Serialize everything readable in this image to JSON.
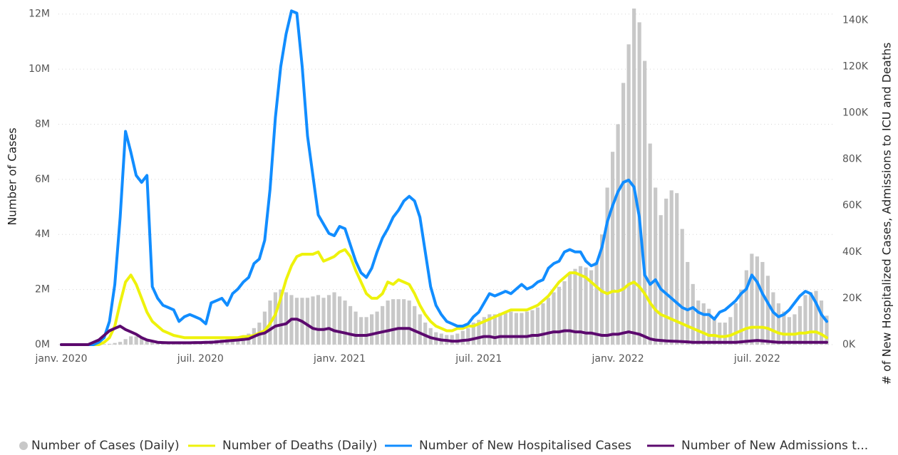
{
  "chart_data": {
    "type": "combo",
    "y_label": "Number of Cases",
    "y2_label": "# of New Hospitalized Cases, Admissions to ICU and Deaths",
    "categories": [
      "janv. 2020",
      null,
      null,
      null,
      null,
      null,
      null,
      null,
      null,
      null,
      null,
      null,
      null,
      null,
      null,
      null,
      null,
      null,
      null,
      null,
      null,
      null,
      null,
      null,
      null,
      null,
      "juil. 2020",
      null,
      null,
      null,
      null,
      null,
      null,
      null,
      null,
      null,
      null,
      null,
      null,
      null,
      null,
      null,
      null,
      null,
      null,
      null,
      null,
      null,
      null,
      null,
      null,
      null,
      "janv. 2021",
      null,
      null,
      null,
      null,
      null,
      null,
      null,
      null,
      null,
      null,
      null,
      null,
      null,
      null,
      null,
      null,
      null,
      null,
      null,
      null,
      null,
      null,
      null,
      null,
      null,
      "juil. 2021",
      null,
      null,
      null,
      null,
      null,
      null,
      null,
      null,
      null,
      null,
      null,
      null,
      null,
      null,
      null,
      null,
      null,
      null,
      null,
      null,
      null,
      null,
      null,
      null,
      null,
      "janv. 2022",
      null,
      null,
      null,
      null,
      null,
      null,
      null,
      null,
      null,
      null,
      null,
      null,
      null,
      null,
      null,
      null,
      null,
      null,
      null,
      null,
      null,
      null,
      null,
      null,
      null,
      "juil. 2022",
      null,
      null,
      null,
      null,
      null,
      null,
      null,
      null,
      null,
      null,
      null,
      null,
      null
    ],
    "ylim": [
      0,
      12200000
    ],
    "yticks": [
      {
        "value": 0,
        "label": "0M"
      },
      {
        "value": 2000000,
        "label": "2M"
      },
      {
        "value": 4000000,
        "label": "4M"
      },
      {
        "value": 6000000,
        "label": "6M"
      },
      {
        "value": 8000000,
        "label": "8M"
      },
      {
        "value": 10000000,
        "label": "10M"
      },
      {
        "value": 12000000,
        "label": "12M"
      }
    ],
    "y2lim": [
      0,
      145000
    ],
    "y2ticks": [
      {
        "value": 0,
        "label": "0K"
      },
      {
        "value": 20000,
        "label": "20K"
      },
      {
        "value": 40000,
        "label": "40K"
      },
      {
        "value": 60000,
        "label": "60K"
      },
      {
        "value": 80000,
        "label": "80K"
      },
      {
        "value": 100000,
        "label": "100K"
      },
      {
        "value": 120000,
        "label": "120K"
      },
      {
        "value": 140000,
        "label": "140K"
      }
    ],
    "grid": true,
    "legend": "bottom",
    "series": [
      {
        "name": "Number of Cases (Daily)",
        "type": "bar",
        "color": "#c8c8c8",
        "values": [
          0,
          0,
          0,
          0,
          0,
          0,
          0,
          0,
          20000,
          30000,
          60000,
          100000,
          200000,
          300000,
          300000,
          250000,
          200000,
          150000,
          100000,
          100000,
          100000,
          100000,
          100000,
          100000,
          100000,
          100000,
          120000,
          130000,
          150000,
          170000,
          180000,
          200000,
          220000,
          250000,
          300000,
          400000,
          600000,
          800000,
          1200000,
          1600000,
          1900000,
          2000000,
          1900000,
          1800000,
          1700000,
          1700000,
          1700000,
          1750000,
          1800000,
          1700000,
          1800000,
          1900000,
          1750000,
          1600000,
          1400000,
          1200000,
          1000000,
          1000000,
          1100000,
          1200000,
          1400000,
          1600000,
          1650000,
          1650000,
          1650000,
          1600000,
          1400000,
          1100000,
          800000,
          600000,
          450000,
          400000,
          350000,
          350000,
          400000,
          500000,
          600000,
          800000,
          900000,
          1000000,
          1100000,
          1100000,
          1150000,
          1200000,
          1200000,
          1150000,
          1150000,
          1200000,
          1250000,
          1350000,
          1500000,
          1700000,
          1900000,
          2100000,
          2300000,
          2600000,
          2750000,
          2850000,
          2800000,
          2700000,
          3000000,
          4000000,
          5700000,
          7000000,
          8000000,
          9500000,
          10900000,
          12200000,
          11700000,
          10300000,
          7300000,
          5700000,
          4700000,
          5300000,
          5600000,
          5500000,
          4200000,
          3000000,
          2200000,
          1600000,
          1500000,
          1300000,
          1000000,
          800000,
          800000,
          1000000,
          1500000,
          2000000,
          2700000,
          3300000,
          3200000,
          3000000,
          2500000,
          1900000,
          1500000,
          1200000,
          1000000,
          1100000,
          1400000,
          1800000,
          1900000,
          1950000,
          1600000,
          1050000
        ]
      },
      {
        "name": "Number of Deaths (Daily)",
        "type": "line",
        "axis": "y2",
        "color": "#eef20c",
        "values": [
          0,
          0,
          0,
          0,
          0,
          0,
          0,
          0,
          1000,
          3000,
          8000,
          18000,
          27000,
          30000,
          26000,
          20000,
          14000,
          10000,
          8000,
          6000,
          5000,
          4000,
          3500,
          3000,
          3000,
          3000,
          3000,
          3000,
          3000,
          3000,
          3000,
          3000,
          3000,
          3000,
          3500,
          3500,
          4000,
          5000,
          6000,
          9000,
          13000,
          20000,
          28000,
          34000,
          38000,
          39000,
          39000,
          39000,
          40000,
          36000,
          37000,
          38000,
          40000,
          41000,
          38000,
          32000,
          27000,
          22000,
          20000,
          20000,
          22000,
          27000,
          26000,
          28000,
          27000,
          26000,
          22000,
          17000,
          13000,
          10000,
          8000,
          7000,
          6000,
          6000,
          7000,
          7000,
          8000,
          8000,
          9000,
          10000,
          11000,
          12000,
          13000,
          14000,
          15000,
          15000,
          15000,
          15000,
          16000,
          17000,
          19000,
          21000,
          24000,
          27000,
          29000,
          31000,
          31000,
          30000,
          29000,
          27000,
          25000,
          23000,
          22000,
          23000,
          23000,
          24000,
          26000,
          27000,
          25000,
          22000,
          18000,
          15000,
          13000,
          12000,
          11000,
          10000,
          9000,
          8000,
          7000,
          6000,
          5000,
          4000,
          4000,
          3500,
          3500,
          4000,
          5000,
          6000,
          7000,
          7500,
          7500,
          7500,
          7000,
          6000,
          5000,
          4500,
          4500,
          4500,
          5000,
          5000,
          5500,
          5500,
          4500,
          3000
        ]
      },
      {
        "name": "Number of New Hospitalised Cases",
        "type": "line",
        "axis": "y2",
        "color": "#118dff",
        "values": [
          0,
          0,
          0,
          0,
          0,
          0,
          0,
          1000,
          3000,
          10000,
          26000,
          55000,
          92000,
          83000,
          73000,
          70000,
          73000,
          25000,
          20000,
          17000,
          16000,
          15000,
          10000,
          12000,
          13000,
          12000,
          11000,
          9000,
          18000,
          19000,
          20000,
          17000,
          22000,
          24000,
          27000,
          29000,
          35000,
          37000,
          45000,
          67000,
          98000,
          120000,
          134000,
          144000,
          143000,
          120000,
          90000,
          73000,
          56000,
          52000,
          48000,
          47000,
          51000,
          50000,
          43000,
          36000,
          31000,
          29000,
          33000,
          40000,
          46000,
          50000,
          55000,
          58000,
          62000,
          64000,
          62000,
          55000,
          40000,
          25000,
          17000,
          13000,
          10000,
          9000,
          8000,
          8000,
          9000,
          12000,
          14000,
          18000,
          22000,
          21000,
          22000,
          23000,
          22000,
          24000,
          26000,
          24000,
          25000,
          27000,
          28000,
          33000,
          35000,
          36000,
          40000,
          41000,
          40000,
          40000,
          36000,
          34000,
          35000,
          42000,
          53000,
          60000,
          66000,
          70000,
          71000,
          68000,
          55000,
          30000,
          26000,
          28000,
          24000,
          22000,
          20000,
          18000,
          16000,
          15000,
          16000,
          14000,
          13000,
          13000,
          11000,
          14000,
          15000,
          17000,
          19000,
          22000,
          24000,
          30000,
          27000,
          22000,
          18000,
          14000,
          12000,
          13000,
          15000,
          18000,
          21000,
          23000,
          22000,
          18000,
          13000,
          10000
        ]
      },
      {
        "name": "Number of New Admissions t...",
        "type": "line",
        "axis": "y2",
        "color": "#5c0a6e",
        "values": [
          0,
          0,
          0,
          0,
          0,
          0,
          1000,
          2000,
          4000,
          6000,
          7000,
          8000,
          6500,
          5500,
          4500,
          3000,
          2000,
          1500,
          1000,
          900,
          800,
          800,
          800,
          800,
          800,
          900,
          900,
          1000,
          1000,
          1200,
          1400,
          1600,
          1800,
          2000,
          2200,
          2500,
          3500,
          4500,
          5000,
          6500,
          8000,
          8500,
          9000,
          11000,
          11000,
          10000,
          8500,
          7000,
          6500,
          6500,
          7000,
          6000,
          5500,
          5000,
          4500,
          4000,
          4000,
          4000,
          4500,
          5000,
          5500,
          6000,
          6500,
          7000,
          7000,
          7000,
          6000,
          5000,
          4000,
          3000,
          2500,
          2000,
          1800,
          1500,
          1500,
          1800,
          2000,
          2500,
          3000,
          3500,
          3500,
          3000,
          3500,
          3500,
          3500,
          3500,
          3500,
          3500,
          4000,
          4000,
          4500,
          5000,
          5500,
          5500,
          6000,
          6000,
          5500,
          5500,
          5000,
          5000,
          4500,
          4000,
          4000,
          4500,
          4500,
          5000,
          5500,
          5000,
          4500,
          3500,
          2500,
          2000,
          1800,
          1600,
          1500,
          1400,
          1300,
          1200,
          1000,
          1000,
          1000,
          1000,
          1000,
          1000,
          1000,
          1000,
          1000,
          1200,
          1400,
          1600,
          1800,
          1600,
          1400,
          1200,
          1000,
          1000,
          1000,
          1000,
          1000,
          1000,
          1000,
          1000,
          1000,
          1000
        ]
      }
    ]
  }
}
